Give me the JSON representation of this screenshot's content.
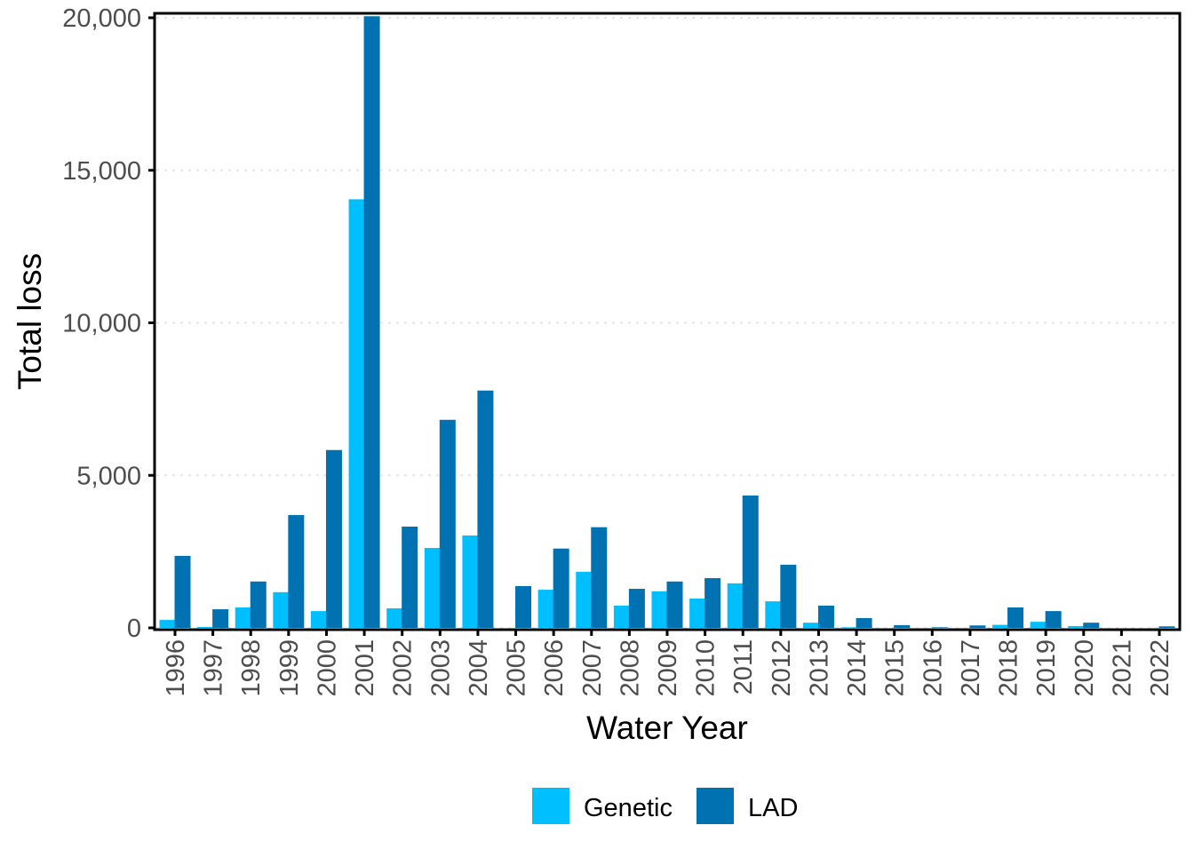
{
  "chart_data": {
    "type": "bar",
    "title": "",
    "xlabel": "Water Year",
    "ylabel": "Total loss",
    "ylim": [
      0,
      20000
    ],
    "yticks": [
      0,
      5000,
      10000,
      15000,
      20000
    ],
    "ytick_labels": [
      "0",
      "5,000",
      "10,000",
      "15,000",
      "20,000"
    ],
    "grid": "major y, dotted light gray",
    "legend_position": "bottom",
    "categories": [
      "1996",
      "1997",
      "1998",
      "1999",
      "2000",
      "2001",
      "2002",
      "2003",
      "2004",
      "2005",
      "2006",
      "2007",
      "2008",
      "2009",
      "2010",
      "2011",
      "2012",
      "2013",
      "2014",
      "2015",
      "2016",
      "2017",
      "2018",
      "2019",
      "2020",
      "2021",
      "2022"
    ],
    "series": [
      {
        "name": "Genetic",
        "color": "#00BFFF",
        "values": [
          260,
          30,
          670,
          1170,
          550,
          14050,
          640,
          2620,
          3030,
          0,
          1250,
          1840,
          730,
          1200,
          960,
          1460,
          870,
          170,
          20,
          0,
          0,
          0,
          100,
          200,
          60,
          0,
          0
        ]
      },
      {
        "name": "LAD",
        "color": "#0072B2",
        "values": [
          2360,
          610,
          1520,
          3700,
          5830,
          20050,
          3320,
          6820,
          7780,
          1370,
          2600,
          3300,
          1280,
          1520,
          1630,
          4340,
          2070,
          730,
          320,
          90,
          20,
          80,
          670,
          550,
          170,
          0,
          50
        ]
      }
    ]
  }
}
